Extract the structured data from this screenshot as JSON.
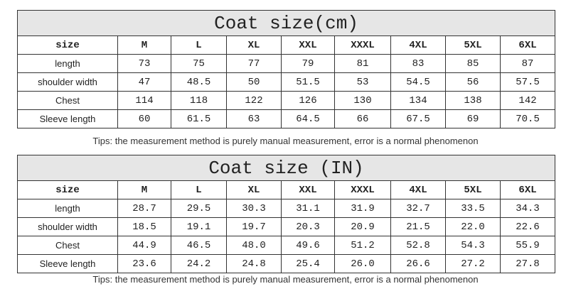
{
  "tables": [
    {
      "title": "Coat size(cm)",
      "header": [
        "size",
        "M",
        "L",
        "XL",
        "XXL",
        "XXXL",
        "4XL",
        "5XL",
        "6XL"
      ],
      "rows": [
        [
          "length",
          "73",
          "75",
          "77",
          "79",
          "81",
          "83",
          "85",
          "87"
        ],
        [
          "shoulder width",
          "47",
          "48.5",
          "50",
          "51.5",
          "53",
          "54.5",
          "56",
          "57.5"
        ],
        [
          "Chest",
          "114",
          "118",
          "122",
          "126",
          "130",
          "134",
          "138",
          "142"
        ],
        [
          "Sleeve length",
          "60",
          "61.5",
          "63",
          "64.5",
          "66",
          "67.5",
          "69",
          "70.5"
        ]
      ],
      "tips": "Tips: the measurement method is purely manual measurement, error is a normal phenomenon"
    },
    {
      "title": "Coat size (IN)",
      "header": [
        "size",
        "M",
        "L",
        "XL",
        "XXL",
        "XXXL",
        "4XL",
        "5XL",
        "6XL"
      ],
      "rows": [
        [
          "length",
          "28.7",
          "29.5",
          "30.3",
          "31.1",
          "31.9",
          "32.7",
          "33.5",
          "34.3"
        ],
        [
          "shoulder width",
          "18.5",
          "19.1",
          "19.7",
          "20.3",
          "20.9",
          "21.5",
          "22.0",
          "22.6"
        ],
        [
          "Chest",
          "44.9",
          "46.5",
          "48.0",
          "49.6",
          "51.2",
          "52.8",
          "54.3",
          "55.9"
        ],
        [
          "Sleeve length",
          "23.6",
          "24.2",
          "24.8",
          "25.4",
          "26.0",
          "26.6",
          "27.2",
          "27.8"
        ]
      ],
      "tips": "Tips: the measurement method is purely manual measurement, error is a normal phenomenon"
    }
  ]
}
